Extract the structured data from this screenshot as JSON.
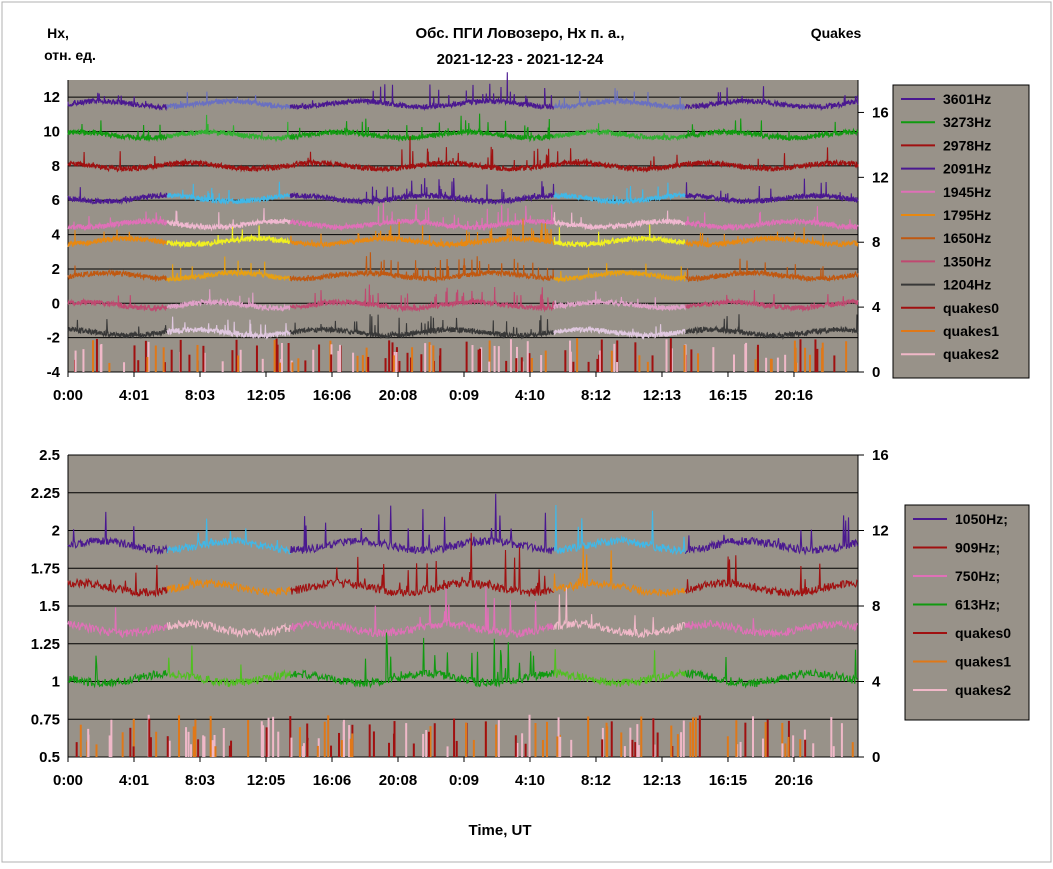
{
  "header": {
    "ylabel_left_1": "Hx,",
    "ylabel_left_2": "отн. ед.",
    "title_1": "Обс. ПГИ Ловозеро, Hx п. а.,",
    "title_2": "2021-12-23 - 2021-12-24",
    "ylabel_right": "Quakes"
  },
  "xlabel": "Time, UT",
  "colors": {
    "plot_bg": "#989289",
    "grid": "#000000",
    "quakes0": "#a01010",
    "quakes1": "#e07818",
    "quakes2": "#f0b8c8"
  },
  "chart_data": [
    {
      "type": "line",
      "x_ticks": [
        "0:00",
        "4:01",
        "8:03",
        "12:05",
        "16:06",
        "20:08",
        "0:09",
        "4:10",
        "8:12",
        "12:13",
        "16:15",
        "20:16"
      ],
      "y_ticks": [
        "12",
        "10",
        "8",
        "6",
        "4",
        "2",
        "0",
        "-2",
        "-4"
      ],
      "ylim": [
        -4,
        13
      ],
      "y2_ticks": [
        "16",
        "12",
        "8",
        "4",
        "0"
      ],
      "y2lim": [
        0,
        18
      ],
      "grid": true,
      "legend_position": "right",
      "x_range_hours": [
        0,
        48
      ],
      "series": [
        {
          "name": "3601Hz",
          "color": "#4a1890",
          "level": 11.6,
          "alt_color": "#6a70c0"
        },
        {
          "name": "3273Hz",
          "color": "#109a10",
          "level": 9.8,
          "alt_color": "#30b030"
        },
        {
          "name": "2978Hz",
          "color": "#a01010",
          "level": 8.0,
          "alt_color": "#a01010"
        },
        {
          "name": "2091Hz",
          "color": "#4a1890",
          "level": 6.1,
          "alt_color": "#40b8e8"
        },
        {
          "name": "1945Hz",
          "color": "#e070b8",
          "level": 4.6,
          "alt_color": "#f0b8d0"
        },
        {
          "name": "1795Hz",
          "color": "#e88810",
          "level": 3.6,
          "alt_color": "#f0f020"
        },
        {
          "name": "1650Hz",
          "color": "#c05810",
          "level": 1.6,
          "alt_color": "#e8a010"
        },
        {
          "name": "1350Hz",
          "color": "#c04870",
          "level": -0.1,
          "alt_color": "#e0a0c8"
        },
        {
          "name": "1204Hz",
          "color": "#383838",
          "level": -1.7,
          "alt_color": "#e0c8e0"
        },
        {
          "name": "quakes0",
          "color": "#a01010"
        },
        {
          "name": "quakes1",
          "color": "#e07818"
        },
        {
          "name": "quakes2",
          "color": "#f0b8c8"
        }
      ]
    },
    {
      "type": "line",
      "x_ticks": [
        "0:00",
        "4:01",
        "8:03",
        "12:05",
        "16:06",
        "20:08",
        "0:09",
        "4:10",
        "8:12",
        "12:13",
        "16:15",
        "20:16"
      ],
      "y_ticks": [
        "2.5",
        "2.25",
        "2",
        "1.75",
        "1.5",
        "1.25",
        "1",
        "0.75",
        "0.5"
      ],
      "ylim": [
        0.5,
        2.5
      ],
      "y2_ticks": [
        "16",
        "12",
        "8",
        "4",
        "0"
      ],
      "y2lim": [
        0,
        16
      ],
      "grid": true,
      "legend_position": "right",
      "x_range_hours": [
        0,
        48
      ],
      "series": [
        {
          "name": "1050Hz;",
          "color": "#4a1890",
          "level": 1.9,
          "alt_color": "#40b8e8"
        },
        {
          "name": "909Hz;",
          "color": "#a01010",
          "level": 1.62,
          "alt_color": "#e88810"
        },
        {
          "name": "750Hz;",
          "color": "#e070b8",
          "level": 1.35,
          "alt_color": "#f0b8c8"
        },
        {
          "name": "613Hz;",
          "color": "#109a10",
          "level": 1.02,
          "alt_color": "#50c020"
        },
        {
          "name": "quakes0",
          "color": "#a01010"
        },
        {
          "name": "quakes1",
          "color": "#e07818"
        },
        {
          "name": "quakes2",
          "color": "#f0b8c8"
        }
      ]
    }
  ]
}
